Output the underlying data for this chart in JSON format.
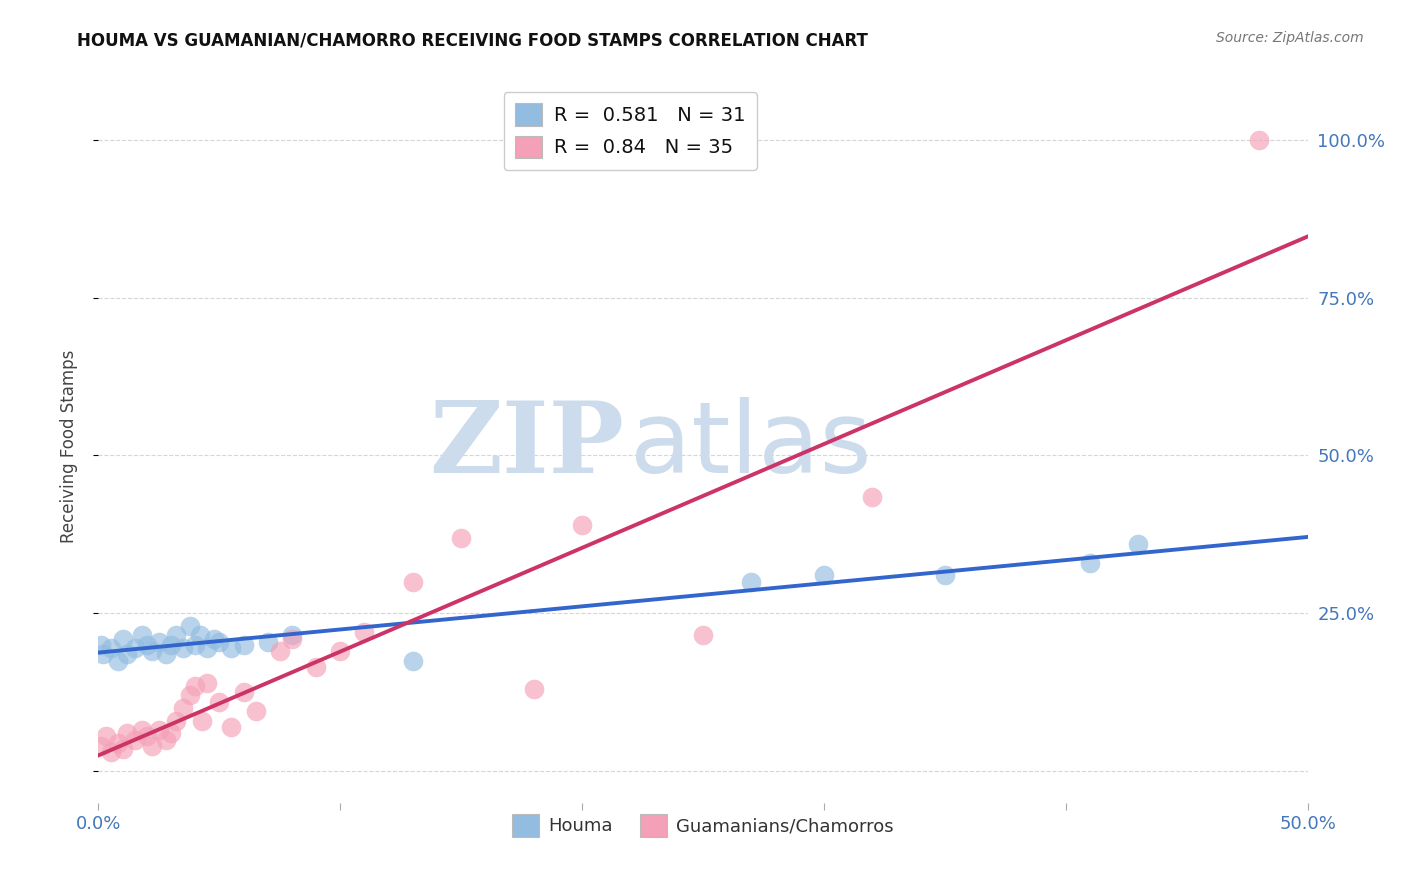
{
  "title": "HOUMA VS GUAMANIAN/CHAMORRO RECEIVING FOOD STAMPS CORRELATION CHART",
  "source": "Source: ZipAtlas.com",
  "ylabel": "Receiving Food Stamps",
  "xlim": [
    0.0,
    0.5
  ],
  "ylim": [
    -0.05,
    1.08
  ],
  "xticks": [
    0.0,
    0.1,
    0.2,
    0.3,
    0.4,
    0.5
  ],
  "xticklabels": [
    "0.0%",
    "",
    "",
    "",
    "",
    "50.0%"
  ],
  "yticks": [
    0.0,
    0.25,
    0.5,
    0.75,
    1.0
  ],
  "right_yticklabels": [
    "",
    "25.0%",
    "50.0%",
    "75.0%",
    "100.0%"
  ],
  "houma_color": "#92bce0",
  "guam_color": "#f4a0b8",
  "houma_line_color": "#3366cc",
  "guam_line_color": "#cc3366",
  "houma_R": 0.581,
  "houma_N": 31,
  "guam_R": 0.84,
  "guam_N": 35,
  "watermark_top": "ZIP",
  "watermark_bot": "atlas",
  "watermark_color": "#cddcec",
  "legend_label_houma": "Houma",
  "legend_label_guam": "Guamanians/Chamorros",
  "houma_x": [
    0.001,
    0.002,
    0.005,
    0.008,
    0.01,
    0.012,
    0.015,
    0.018,
    0.02,
    0.022,
    0.025,
    0.028,
    0.03,
    0.032,
    0.035,
    0.038,
    0.04,
    0.042,
    0.045,
    0.048,
    0.05,
    0.055,
    0.06,
    0.07,
    0.08,
    0.13,
    0.27,
    0.3,
    0.35,
    0.41,
    0.43
  ],
  "houma_y": [
    0.2,
    0.185,
    0.195,
    0.175,
    0.21,
    0.185,
    0.195,
    0.215,
    0.2,
    0.19,
    0.205,
    0.185,
    0.2,
    0.215,
    0.195,
    0.23,
    0.2,
    0.215,
    0.195,
    0.21,
    0.205,
    0.195,
    0.2,
    0.205,
    0.215,
    0.175,
    0.3,
    0.31,
    0.31,
    0.33,
    0.36
  ],
  "guam_x": [
    0.001,
    0.003,
    0.005,
    0.008,
    0.01,
    0.012,
    0.015,
    0.018,
    0.02,
    0.022,
    0.025,
    0.028,
    0.03,
    0.032,
    0.035,
    0.038,
    0.04,
    0.043,
    0.045,
    0.05,
    0.055,
    0.06,
    0.065,
    0.075,
    0.08,
    0.09,
    0.1,
    0.11,
    0.13,
    0.15,
    0.18,
    0.2,
    0.25,
    0.32,
    0.48
  ],
  "guam_y": [
    0.04,
    0.055,
    0.03,
    0.045,
    0.035,
    0.06,
    0.05,
    0.065,
    0.055,
    0.04,
    0.065,
    0.05,
    0.06,
    0.08,
    0.1,
    0.12,
    0.135,
    0.08,
    0.14,
    0.11,
    0.07,
    0.125,
    0.095,
    0.19,
    0.21,
    0.165,
    0.19,
    0.22,
    0.3,
    0.37,
    0.13,
    0.39,
    0.215,
    0.435,
    1.0
  ],
  "background_color": "#ffffff",
  "grid_color": "#cccccc",
  "tick_color": "#4477bb"
}
